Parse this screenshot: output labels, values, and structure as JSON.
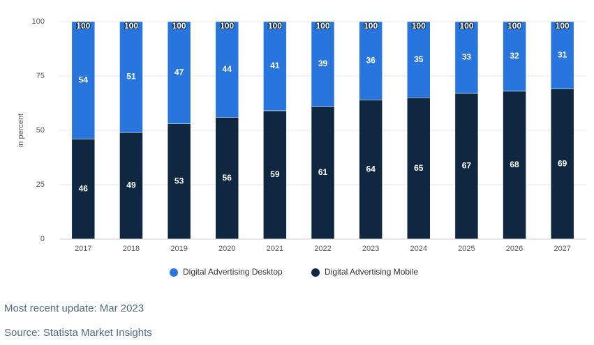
{
  "chart_data": {
    "type": "stacked-bar",
    "y_label": "in percent",
    "categories": [
      "2017",
      "2018",
      "2019",
      "2020",
      "2021",
      "2022",
      "2023",
      "2024",
      "2025",
      "2026",
      "2027"
    ],
    "series": [
      {
        "name": "Digital Advertising Desktop",
        "color": "#2876dd",
        "values": [
          54,
          51,
          47,
          44,
          41,
          39,
          36,
          35,
          33,
          32,
          31
        ]
      },
      {
        "name": "Digital Advertising Mobile",
        "color": "#0f2740",
        "values": [
          46,
          49,
          53,
          56,
          59,
          61,
          64,
          65,
          67,
          68,
          69
        ]
      }
    ],
    "totals": [
      100,
      100,
      100,
      100,
      100,
      100,
      100,
      100,
      100,
      100,
      100
    ],
    "ylim": [
      0,
      100
    ],
    "yticks": [
      0,
      25,
      50,
      75,
      100
    ],
    "grid": true
  },
  "footer": {
    "update": "Most recent update: Mar 2023",
    "source": "Source: Statista Market Insights"
  }
}
